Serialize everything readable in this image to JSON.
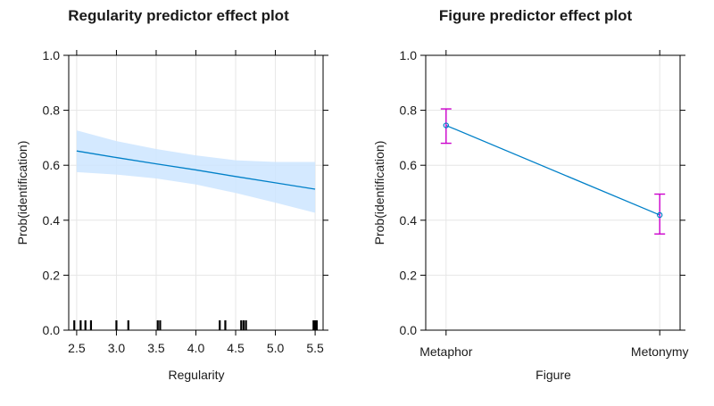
{
  "chart_data": [
    {
      "type": "line",
      "title": "Regularity predictor effect plot",
      "xlabel": "Regularity",
      "ylabel": "Prob(identification)",
      "xlim": [
        2.4,
        5.6
      ],
      "ylim": [
        0,
        1
      ],
      "x_ticks": [
        2.5,
        3.0,
        3.5,
        4.0,
        4.5,
        5.0,
        5.5
      ],
      "x_tick_labels": [
        "2.5",
        "3.0",
        "3.5",
        "4.0",
        "4.5",
        "5.0",
        "5.5"
      ],
      "y_ticks": [
        0,
        0.2,
        0.4,
        0.6,
        0.8,
        1.0
      ],
      "y_tick_labels": [
        "0.0",
        "0.2",
        "0.4",
        "0.6",
        "0.8",
        "1.0"
      ],
      "grid": true,
      "line_color": "#0080c8",
      "band_color": "#cce5ff",
      "series": [
        {
          "x": [
            2.5,
            3.0,
            3.5,
            4.0,
            4.5,
            5.0,
            5.5
          ],
          "y": [
            0.652,
            0.628,
            0.605,
            0.583,
            0.559,
            0.536,
            0.513
          ],
          "lower": [
            0.575,
            0.566,
            0.552,
            0.53,
            0.499,
            0.464,
            0.427
          ],
          "upper": [
            0.727,
            0.688,
            0.659,
            0.636,
            0.618,
            0.612,
            0.612
          ]
        }
      ],
      "rug": [
        2.47,
        2.55,
        2.61,
        2.68,
        3.0,
        3.15,
        3.52,
        3.55,
        4.3,
        4.37,
        4.57,
        4.6,
        4.63,
        5.48,
        5.5,
        5.52
      ]
    },
    {
      "type": "line",
      "title": "Figure predictor effect plot",
      "xlabel": "Figure",
      "ylabel": "Prob(identification)",
      "categories": [
        "Metaphor",
        "Metonymy"
      ],
      "ylim": [
        0,
        1
      ],
      "y_ticks": [
        0,
        0.2,
        0.4,
        0.6,
        0.8,
        1.0
      ],
      "y_tick_labels": [
        "0.0",
        "0.2",
        "0.4",
        "0.6",
        "0.8",
        "1.0"
      ],
      "grid": true,
      "line_color": "#0080c8",
      "errorbar_color": "#cc00cc",
      "values": [
        0.745,
        0.419
      ],
      "lower": [
        0.68,
        0.35
      ],
      "upper": [
        0.805,
        0.495
      ]
    }
  ]
}
